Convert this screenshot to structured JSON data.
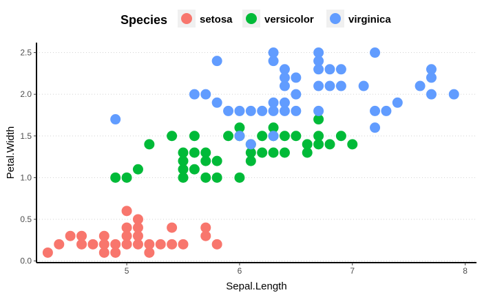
{
  "chart_data": {
    "type": "scatter",
    "xlabel": "Sepal.Length",
    "ylabel": "Petal.Width",
    "xlim": [
      4.2,
      8.1
    ],
    "ylim": [
      -0.02,
      2.62
    ],
    "x_ticks": [
      5,
      6,
      7,
      8
    ],
    "y_ticks": [
      0.0,
      0.5,
      1.0,
      1.5,
      2.0,
      2.5
    ],
    "x_tick_labels": [
      "5",
      "6",
      "7",
      "8"
    ],
    "y_tick_labels": [
      "0.0",
      "0.5",
      "1.0",
      "1.5",
      "2.0",
      "2.5"
    ],
    "grid": "horizontal dotted",
    "legend": {
      "title": "Species",
      "position": "top"
    },
    "series": [
      {
        "name": "setosa",
        "color": "#F8766D",
        "points": [
          [
            4.3,
            0.1
          ],
          [
            4.4,
            0.2
          ],
          [
            4.5,
            0.3
          ],
          [
            4.6,
            0.2
          ],
          [
            4.6,
            0.3
          ],
          [
            4.7,
            0.2
          ],
          [
            4.8,
            0.1
          ],
          [
            4.8,
            0.2
          ],
          [
            4.8,
            0.3
          ],
          [
            4.9,
            0.1
          ],
          [
            4.9,
            0.2
          ],
          [
            5.0,
            0.2
          ],
          [
            5.0,
            0.3
          ],
          [
            5.0,
            0.4
          ],
          [
            5.0,
            0.6
          ],
          [
            5.1,
            0.2
          ],
          [
            5.1,
            0.3
          ],
          [
            5.1,
            0.4
          ],
          [
            5.1,
            0.5
          ],
          [
            5.2,
            0.1
          ],
          [
            5.2,
            0.2
          ],
          [
            5.3,
            0.2
          ],
          [
            5.4,
            0.2
          ],
          [
            5.4,
            0.4
          ],
          [
            5.5,
            0.2
          ],
          [
            5.7,
            0.3
          ],
          [
            5.7,
            0.4
          ],
          [
            5.8,
            0.2
          ]
        ]
      },
      {
        "name": "versicolor",
        "color": "#00BA38",
        "points": [
          [
            4.9,
            1.0
          ],
          [
            5.0,
            1.0
          ],
          [
            5.1,
            1.1
          ],
          [
            5.2,
            1.4
          ],
          [
            5.4,
            1.5
          ],
          [
            5.5,
            1.0
          ],
          [
            5.5,
            1.1
          ],
          [
            5.5,
            1.2
          ],
          [
            5.5,
            1.3
          ],
          [
            5.6,
            1.1
          ],
          [
            5.6,
            1.3
          ],
          [
            5.6,
            1.5
          ],
          [
            5.7,
            1.0
          ],
          [
            5.7,
            1.2
          ],
          [
            5.7,
            1.3
          ],
          [
            5.8,
            1.0
          ],
          [
            5.8,
            1.2
          ],
          [
            5.9,
            1.5
          ],
          [
            6.0,
            1.0
          ],
          [
            6.0,
            1.5
          ],
          [
            6.0,
            1.6
          ],
          [
            6.1,
            1.2
          ],
          [
            6.1,
            1.3
          ],
          [
            6.1,
            1.4
          ],
          [
            6.2,
            1.3
          ],
          [
            6.2,
            1.5
          ],
          [
            6.3,
            1.3
          ],
          [
            6.3,
            1.5
          ],
          [
            6.3,
            1.6
          ],
          [
            6.4,
            1.3
          ],
          [
            6.4,
            1.5
          ],
          [
            6.5,
            1.5
          ],
          [
            6.6,
            1.3
          ],
          [
            6.6,
            1.4
          ],
          [
            6.7,
            1.4
          ],
          [
            6.7,
            1.5
          ],
          [
            6.7,
            1.7
          ],
          [
            6.8,
            1.4
          ],
          [
            6.9,
            1.5
          ],
          [
            7.0,
            1.4
          ]
        ]
      },
      {
        "name": "virginica",
        "color": "#619CFF",
        "points": [
          [
            4.9,
            1.7
          ],
          [
            5.6,
            2.0
          ],
          [
            5.7,
            2.0
          ],
          [
            5.8,
            1.9
          ],
          [
            5.8,
            2.4
          ],
          [
            5.9,
            1.8
          ],
          [
            6.0,
            1.8
          ],
          [
            6.0,
            1.5
          ],
          [
            6.1,
            1.8
          ],
          [
            6.1,
            1.4
          ],
          [
            6.2,
            1.8
          ],
          [
            6.3,
            1.8
          ],
          [
            6.3,
            1.9
          ],
          [
            6.3,
            2.4
          ],
          [
            6.3,
            2.5
          ],
          [
            6.3,
            1.5
          ],
          [
            6.4,
            1.8
          ],
          [
            6.4,
            1.9
          ],
          [
            6.4,
            2.1
          ],
          [
            6.4,
            2.2
          ],
          [
            6.4,
            2.3
          ],
          [
            6.5,
            1.8
          ],
          [
            6.5,
            2.0
          ],
          [
            6.5,
            2.2
          ],
          [
            6.7,
            1.8
          ],
          [
            6.7,
            2.1
          ],
          [
            6.7,
            2.3
          ],
          [
            6.7,
            2.4
          ],
          [
            6.7,
            2.5
          ],
          [
            6.8,
            2.1
          ],
          [
            6.8,
            2.3
          ],
          [
            6.9,
            2.1
          ],
          [
            6.9,
            2.3
          ],
          [
            7.1,
            2.1
          ],
          [
            7.2,
            1.6
          ],
          [
            7.2,
            1.8
          ],
          [
            7.2,
            2.5
          ],
          [
            7.3,
            1.8
          ],
          [
            7.4,
            1.9
          ],
          [
            7.6,
            2.1
          ],
          [
            7.7,
            2.0
          ],
          [
            7.7,
            2.2
          ],
          [
            7.7,
            2.3
          ],
          [
            7.9,
            2.0
          ]
        ]
      }
    ]
  }
}
